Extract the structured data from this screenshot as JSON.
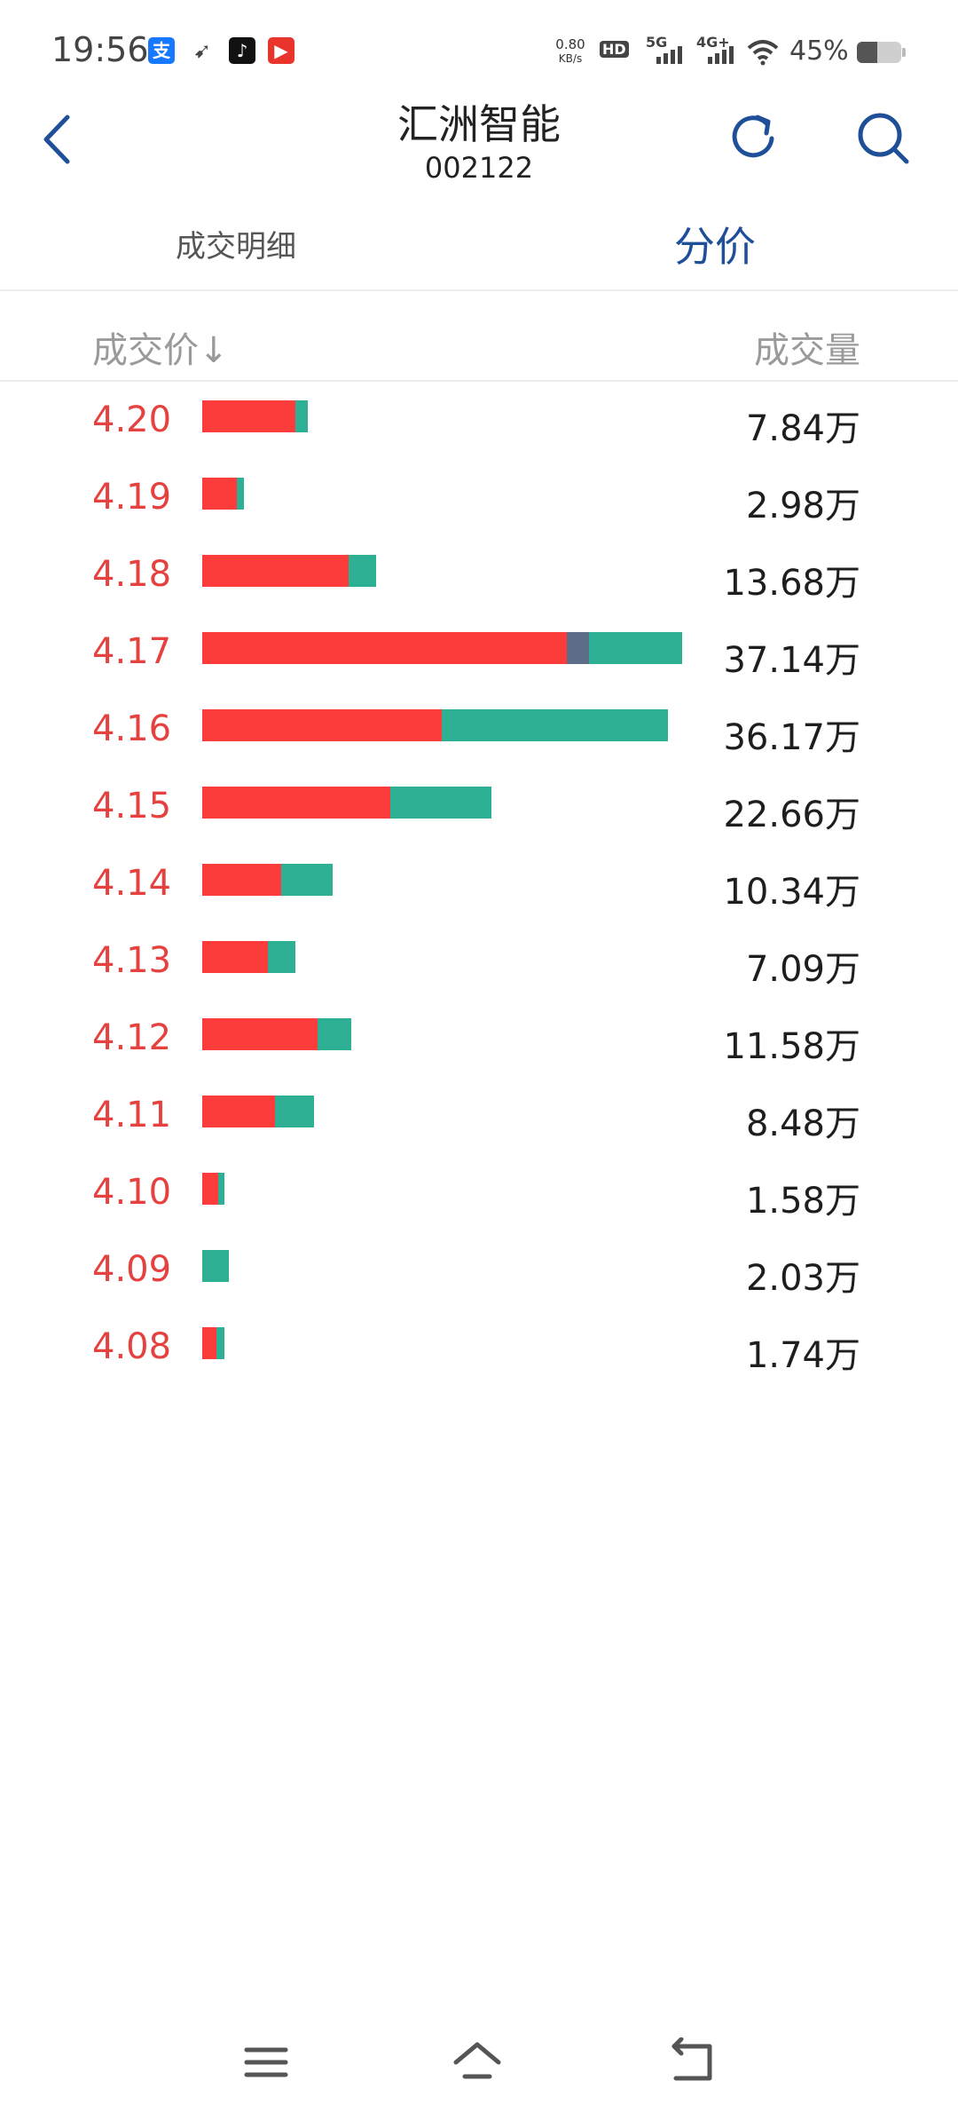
{
  "status_bar": {
    "time": "19:56",
    "net_speed_value": "0.80",
    "net_speed_unit": "KB/s",
    "hd_label": "HD",
    "sim1_label": "5G",
    "sim2_label": "4G+",
    "battery": "45%",
    "battery_level": 0.45
  },
  "header": {
    "title": "汇洲智能",
    "code": "002122"
  },
  "tabs": [
    {
      "label": "成交明细",
      "active": false
    },
    {
      "label": "分价",
      "active": true
    }
  ],
  "table": {
    "price_header": "成交价↓",
    "volume_header": "成交量",
    "colors": {
      "buy": "#fc3b3b",
      "sell": "#2db094",
      "neutral": "#5e6e88"
    },
    "rows": [
      {
        "price": "4.20",
        "volume": "7.84万",
        "buy": 6.0,
        "neutral": 0,
        "sell": 0.8
      },
      {
        "price": "4.19",
        "volume": "2.98万",
        "buy": 2.2,
        "neutral": 0,
        "sell": 0.5
      },
      {
        "price": "4.18",
        "volume": "13.68万",
        "buy": 9.4,
        "neutral": 0,
        "sell": 1.8
      },
      {
        "price": "4.17",
        "volume": "37.14万",
        "buy": 23.5,
        "neutral": 1.4,
        "sell": 6.0
      },
      {
        "price": "4.16",
        "volume": "36.17万",
        "buy": 15.4,
        "neutral": 0,
        "sell": 14.6
      },
      {
        "price": "4.15",
        "volume": "22.66万",
        "buy": 12.1,
        "neutral": 0,
        "sell": 6.5
      },
      {
        "price": "4.14",
        "volume": "10.34万",
        "buy": 5.1,
        "neutral": 0,
        "sell": 3.3
      },
      {
        "price": "4.13",
        "volume": "7.09万",
        "buy": 4.2,
        "neutral": 0,
        "sell": 1.8
      },
      {
        "price": "4.12",
        "volume": "11.58万",
        "buy": 7.4,
        "neutral": 0,
        "sell": 2.2
      },
      {
        "price": "4.11",
        "volume": "8.48万",
        "buy": 4.7,
        "neutral": 0,
        "sell": 2.5
      },
      {
        "price": "4.10",
        "volume": "1.58万",
        "buy": 1.0,
        "neutral": 0,
        "sell": 0.4
      },
      {
        "price": "4.09",
        "volume": "2.03万",
        "buy": 0,
        "neutral": 0,
        "sell": 1.7
      },
      {
        "price": "4.08",
        "volume": "1.74万",
        "buy": 0.9,
        "neutral": 0,
        "sell": 0.5
      }
    ]
  },
  "nav": {
    "icons": [
      "menu-icon",
      "home-icon",
      "back-nav-icon"
    ]
  }
}
